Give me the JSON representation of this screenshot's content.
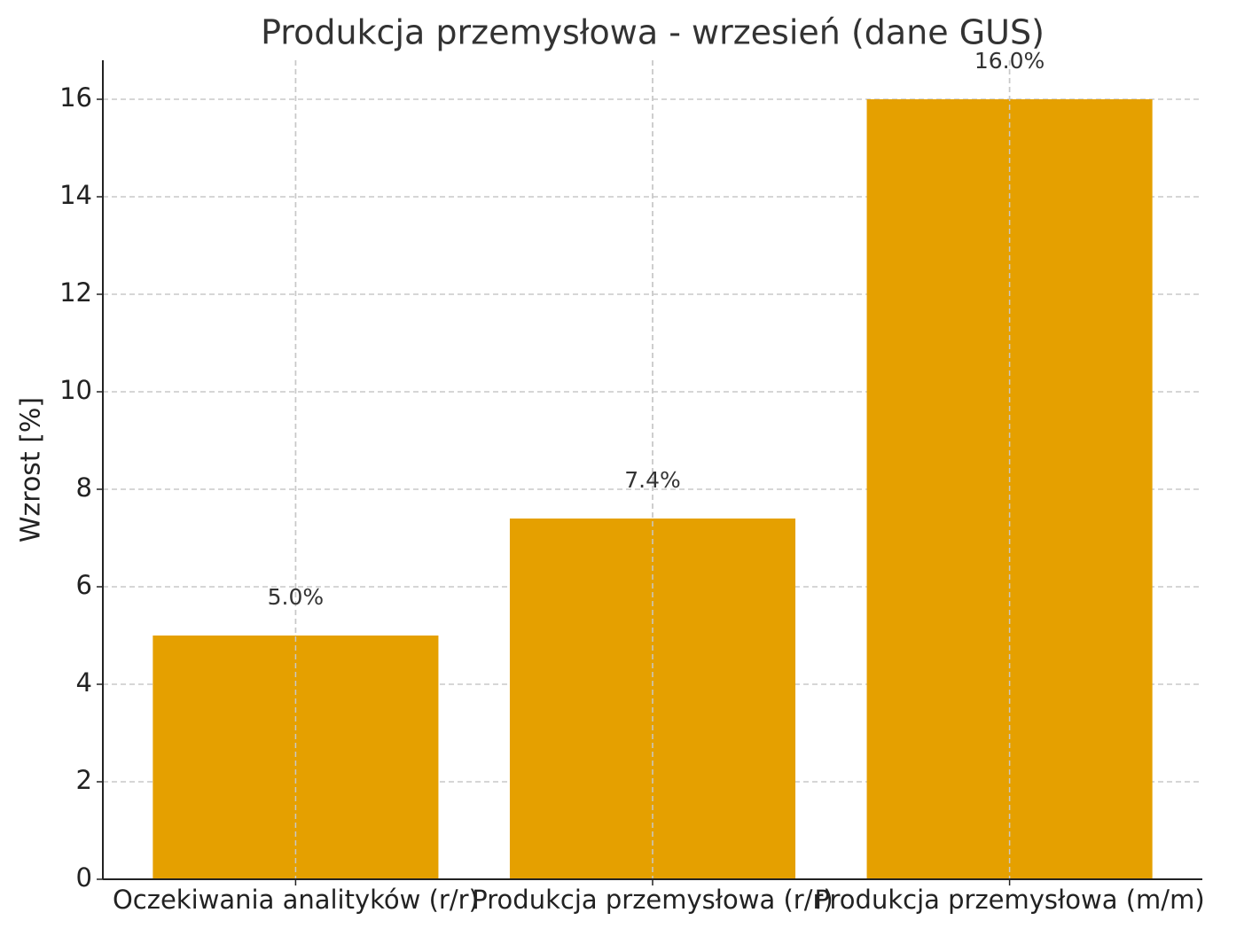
{
  "chart_data": {
    "type": "bar",
    "title": "Produkcja przemysłowa - wrzesień (dane GUS)",
    "y_label": "Wzrost [%]",
    "categories": [
      "Oczekiwania analityków (r/r)",
      "Produkcja przemysłowa (r/r)",
      "Produkcja przemysłowa (m/m)"
    ],
    "values": [
      5.0,
      7.4,
      16.0
    ],
    "value_labels": [
      "5.0%",
      "7.4%",
      "16.0%"
    ],
    "color": "#e5a000",
    "ylim": [
      0,
      16.8
    ],
    "yticks": [
      0,
      2,
      4,
      6,
      8,
      10,
      12,
      14,
      16
    ],
    "grid": true
  }
}
